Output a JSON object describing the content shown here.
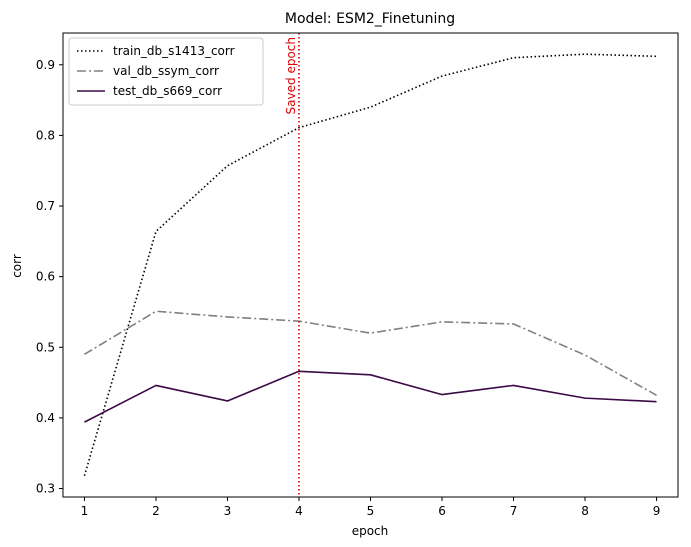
{
  "chart_data": {
    "type": "line",
    "title": "Model: ESM2_Finetuning",
    "xlabel": "epoch",
    "ylabel": "corr",
    "x": [
      1,
      2,
      3,
      4,
      5,
      6,
      7,
      8,
      9
    ],
    "xticks": [
      "1",
      "2",
      "3",
      "4",
      "5",
      "6",
      "7",
      "8",
      "9"
    ],
    "yticks": [
      "0.3",
      "0.4",
      "0.5",
      "0.6",
      "0.7",
      "0.8",
      "0.9"
    ],
    "ytick_values": [
      0.3,
      0.4,
      0.5,
      0.6,
      0.7,
      0.8,
      0.9
    ],
    "xlim": [
      0.7,
      9.3
    ],
    "ylim": [
      0.288,
      0.945
    ],
    "grid": false,
    "legend_position": "top-left",
    "series": [
      {
        "name": "train_db_s1413_corr",
        "values": [
          0.318,
          0.664,
          0.757,
          0.811,
          0.84,
          0.884,
          0.91,
          0.915,
          0.912
        ],
        "color": "#000000",
        "dash": "dotted"
      },
      {
        "name": "val_db_ssym_corr",
        "values": [
          0.49,
          0.551,
          0.543,
          0.537,
          0.52,
          0.536,
          0.533,
          0.489,
          0.432
        ],
        "color": "#808080",
        "dash": "dashdot"
      },
      {
        "name": "test_db_s669_corr",
        "values": [
          0.394,
          0.446,
          0.424,
          0.466,
          0.461,
          0.433,
          0.446,
          0.428,
          0.423
        ],
        "color": "#3b0a45",
        "dash": "solid"
      }
    ],
    "annotations": [
      {
        "type": "vline",
        "x": 4,
        "label": "Saved epoch",
        "color": "#e00000",
        "dash": "dotted"
      }
    ]
  }
}
